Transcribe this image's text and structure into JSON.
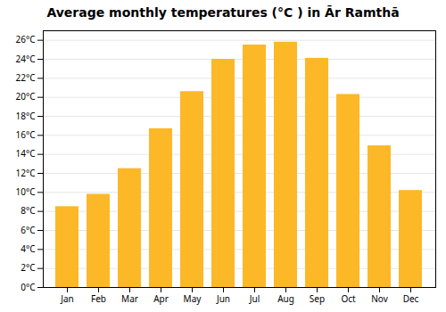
{
  "chart_data": {
    "type": "bar",
    "title": "Average monthly temperatures (°C ) in Ār Ramthā",
    "categories": [
      "Jan",
      "Feb",
      "Mar",
      "Apr",
      "May",
      "Jun",
      "Jul",
      "Aug",
      "Sep",
      "Oct",
      "Nov",
      "Dec"
    ],
    "values": [
      8.5,
      9.8,
      12.5,
      16.7,
      20.6,
      24.0,
      25.5,
      25.8,
      24.1,
      20.3,
      14.9,
      10.2
    ],
    "color": "#FDB827",
    "ylim": [
      0,
      27
    ],
    "yticks": [
      {
        "value": 0,
        "label": "0°C"
      },
      {
        "value": 2,
        "label": "2°C"
      },
      {
        "value": 4,
        "label": "4°C"
      },
      {
        "value": 6,
        "label": "6°C"
      },
      {
        "value": 8,
        "label": "8°C"
      },
      {
        "value": 10,
        "label": "10°C"
      },
      {
        "value": 12,
        "label": "12°C"
      },
      {
        "value": 14,
        "label": "14°C"
      },
      {
        "value": 16,
        "label": "16°C"
      },
      {
        "value": 18,
        "label": "18°C"
      },
      {
        "value": 20,
        "label": "20°C"
      },
      {
        "value": 22,
        "label": "22°C"
      },
      {
        "value": 24,
        "label": "24°C"
      },
      {
        "value": 26,
        "label": "26°C"
      }
    ],
    "grid": true
  }
}
